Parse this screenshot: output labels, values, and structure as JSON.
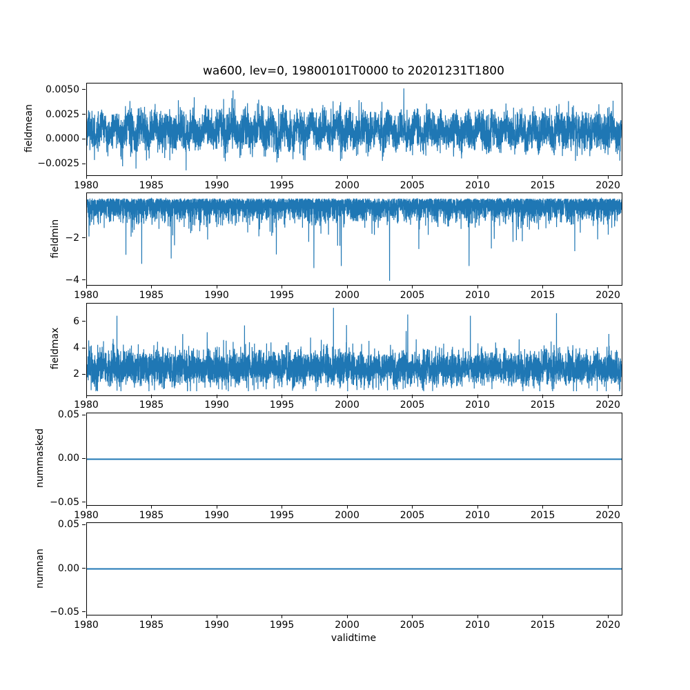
{
  "figure": {
    "title": "wa600, lev=0, 19800101T0000 to 20201231T1800",
    "xlabel": "validtime",
    "background": "#ffffff",
    "line_color": "#1f77b4",
    "x_range": [
      1980,
      2021
    ],
    "xticks": {
      "values": [
        1980,
        1985,
        1990,
        1995,
        2000,
        2005,
        2010,
        2015,
        2020
      ],
      "labels": [
        "1980",
        "1985",
        "1990",
        "1995",
        "2000",
        "2005",
        "2010",
        "2015",
        "2020"
      ]
    }
  },
  "chart_data": [
    {
      "type": "line",
      "name": "fieldmean",
      "ylabel": "fieldmean",
      "x_range": [
        1980,
        2021
      ],
      "ylim": [
        -0.0036,
        0.0057
      ],
      "yticks": {
        "values": [
          0.005,
          0.0025,
          0.0,
          -0.0025
        ],
        "labels": [
          "0.0050",
          "0.0025",
          "0.0000",
          "−0.0025"
        ]
      },
      "summary": {
        "description": "dense noisy 6-hourly series with annual cycle",
        "mean": 0.0009,
        "typical_range": [
          -0.001,
          0.003
        ],
        "min": -0.0031,
        "max": 0.0052
      },
      "gen": {
        "seed": 11,
        "n": 5200,
        "kind": "noisy",
        "baseline": 0.0009,
        "gauss_amp": 0.00095,
        "half": false,
        "sign": 1,
        "seasonal_amp": 0.00055,
        "spike_prob": 0,
        "spike_amp": 0,
        "spike_sign": 1,
        "clamp": [
          -0.0031,
          0.0052
        ],
        "forced": [
          {
            "x": 2004.3,
            "v": 0.0052
          },
          {
            "x": 1991.2,
            "v": 0.005
          },
          {
            "x": 1987.6,
            "v": -0.0031
          }
        ]
      }
    },
    {
      "type": "line",
      "name": "fieldmin",
      "ylabel": "fieldmin",
      "x_range": [
        1980,
        2021
      ],
      "ylim": [
        -4.2,
        0.15
      ],
      "yticks": {
        "values": [
          -2,
          -4
        ],
        "labels": [
          "−2",
          "−4"
        ]
      },
      "summary": {
        "description": "dense band between -0.1 and -1.5 with frequent downward spikes",
        "typical_range": [
          -1.5,
          -0.05
        ],
        "min": -4.0
      },
      "gen": {
        "seed": 22,
        "n": 6200,
        "kind": "noisy",
        "baseline": -0.1,
        "gauss_amp": 0.48,
        "half": true,
        "sign": -1,
        "seasonal_amp": 0,
        "spike_prob": 0.01,
        "spike_amp": 2.1,
        "spike_sign": -1,
        "clamp": [
          -4.0,
          -0.02
        ],
        "forced": [
          {
            "x": 2003.2,
            "v": -4.0
          },
          {
            "x": 1997.4,
            "v": -3.4
          },
          {
            "x": 1999.5,
            "v": -3.3
          },
          {
            "x": 2009.3,
            "v": -3.3
          },
          {
            "x": 1984.2,
            "v": -3.2
          }
        ]
      }
    },
    {
      "type": "line",
      "name": "fieldmax",
      "ylabel": "fieldmax",
      "x_range": [
        1980,
        2021
      ],
      "ylim": [
        0.49,
        7.42
      ],
      "yticks": {
        "values": [
          6,
          4,
          2
        ],
        "labels": [
          "6",
          "4",
          "2"
        ]
      },
      "summary": {
        "description": "dense band between 1.5 and 4.5 with upward spikes",
        "typical_range": [
          1.5,
          4.5
        ],
        "max": 7.1
      },
      "gen": {
        "seed": 33,
        "n": 6200,
        "kind": "noisy",
        "baseline": 2.55,
        "gauss_amp": 0.62,
        "half": false,
        "sign": 1,
        "seasonal_amp": 0.15,
        "spike_prob": 0.012,
        "spike_amp": 1.9,
        "spike_sign": 1,
        "clamp": [
          0.8,
          7.1
        ],
        "forced": [
          {
            "x": 1998.9,
            "v": 7.1
          },
          {
            "x": 2016.0,
            "v": 6.7
          },
          {
            "x": 2004.6,
            "v": 6.6
          },
          {
            "x": 2009.4,
            "v": 6.5
          },
          {
            "x": 1982.3,
            "v": 6.5
          }
        ]
      }
    },
    {
      "type": "line",
      "name": "nummasked",
      "ylabel": "nummasked",
      "x_range": [
        1980,
        2021
      ],
      "ylim": [
        -0.0525,
        0.0525
      ],
      "yticks": {
        "values": [
          0.05,
          0.0,
          -0.05
        ],
        "labels": [
          "0.05",
          "0.00",
          "−0.05"
        ]
      },
      "summary": {
        "description": "constant zero line",
        "constant": 0
      },
      "gen": {
        "kind": "flat",
        "value": 0
      }
    },
    {
      "type": "line",
      "name": "numnan",
      "ylabel": "numnan",
      "x_range": [
        1980,
        2021
      ],
      "ylim": [
        -0.0525,
        0.0525
      ],
      "yticks": {
        "values": [
          0.05,
          0.0,
          -0.05
        ],
        "labels": [
          "0.05",
          "0.00",
          "−0.05"
        ]
      },
      "summary": {
        "description": "constant zero line",
        "constant": 0
      },
      "gen": {
        "kind": "flat",
        "value": 0
      }
    }
  ]
}
